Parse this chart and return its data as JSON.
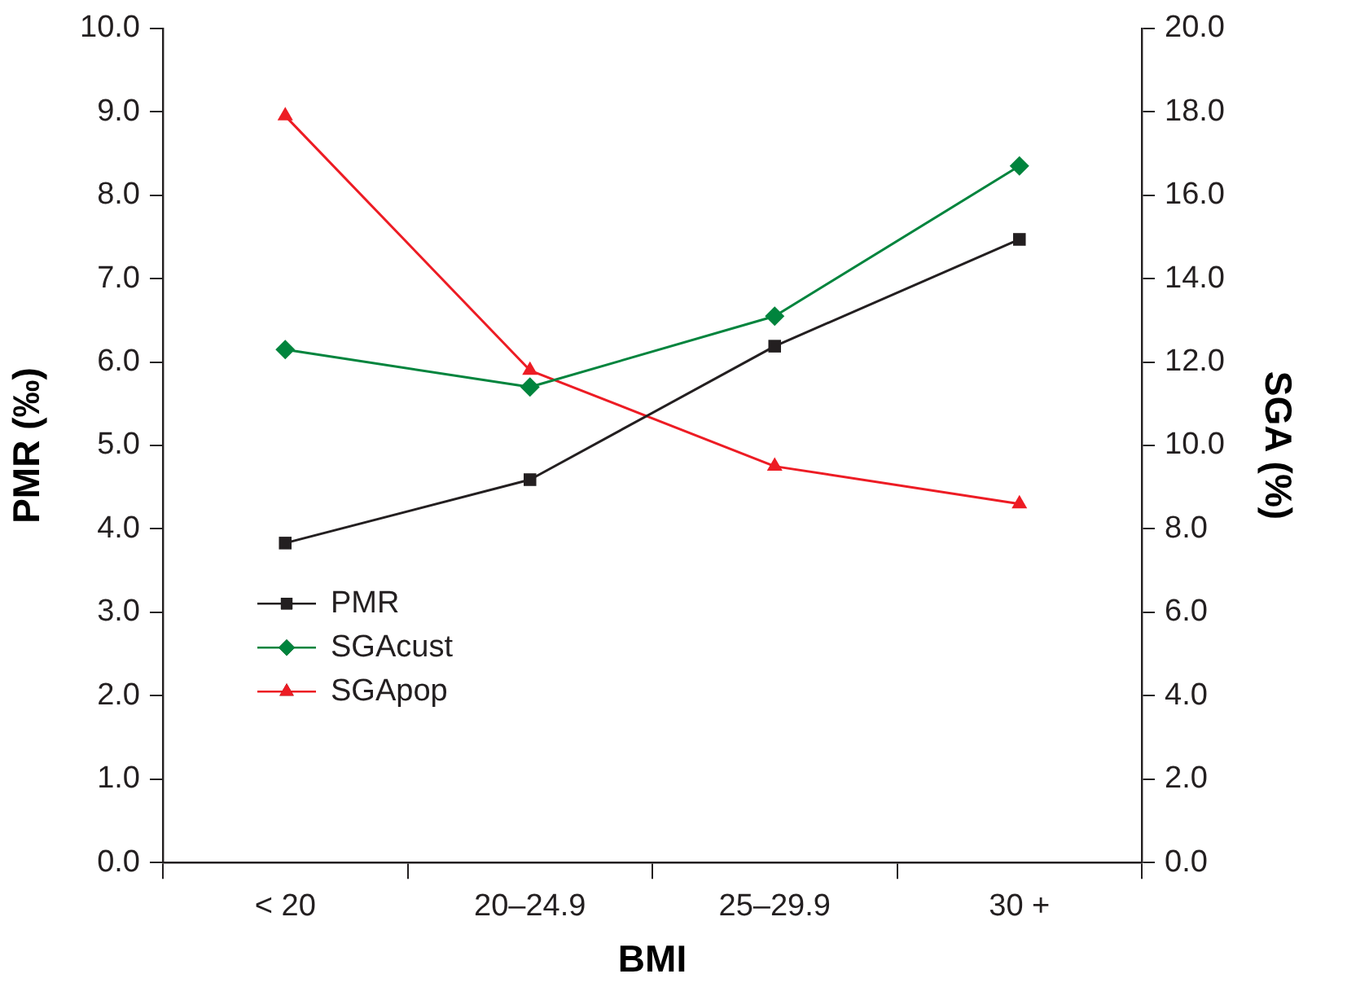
{
  "chart_data": {
    "type": "line",
    "xlabel": "BMI",
    "ylabel": "PMR (‰)",
    "y2label": "SGA (%)",
    "categories": [
      "< 20",
      "20–24.9",
      "25–29.9",
      "30 +"
    ],
    "series": [
      {
        "name": "PMR",
        "color": "#231f20",
        "marker": "square",
        "values": [
          3.83,
          4.59,
          6.19,
          7.47
        ]
      },
      {
        "name": "SGAcust",
        "color": "#00843d",
        "marker": "diamond",
        "axis": "y2",
        "values": [
          12.3,
          11.4,
          13.1,
          16.7
        ]
      },
      {
        "name": "SGApop",
        "color": "#ed1c24",
        "marker": "triangle",
        "axis": "y2",
        "values": [
          17.9,
          11.8,
          9.5,
          8.6
        ]
      }
    ],
    "ylim": [
      0,
      10
    ],
    "yticks": [
      {
        "value": 0,
        "label": "0.0"
      },
      {
        "value": 1,
        "label": "1.0"
      },
      {
        "value": 2,
        "label": "2.0"
      },
      {
        "value": 3,
        "label": "3.0"
      },
      {
        "value": 4,
        "label": "4.0"
      },
      {
        "value": 5,
        "label": "5.0"
      },
      {
        "value": 6,
        "label": "6.0"
      },
      {
        "value": 7,
        "label": "7.0"
      },
      {
        "value": 8,
        "label": "8.0"
      },
      {
        "value": 9,
        "label": "9.0"
      },
      {
        "value": 10,
        "label": "10.0"
      }
    ],
    "y2lim": [
      0,
      20
    ],
    "y2ticks": [
      {
        "value": 0,
        "label": "0.0"
      },
      {
        "value": 2,
        "label": "2.0"
      },
      {
        "value": 4,
        "label": "4.0"
      },
      {
        "value": 6,
        "label": "6.0"
      },
      {
        "value": 8,
        "label": "8.0"
      },
      {
        "value": 10,
        "label": "10.0"
      },
      {
        "value": 12,
        "label": "12.0"
      },
      {
        "value": 14,
        "label": "14.0"
      },
      {
        "value": 16,
        "label": "16.0"
      },
      {
        "value": 18,
        "label": "18.0"
      },
      {
        "value": 20,
        "label": "20.0"
      }
    ],
    "grid": false,
    "legend": "bottom left",
    "line_style": "solid"
  }
}
